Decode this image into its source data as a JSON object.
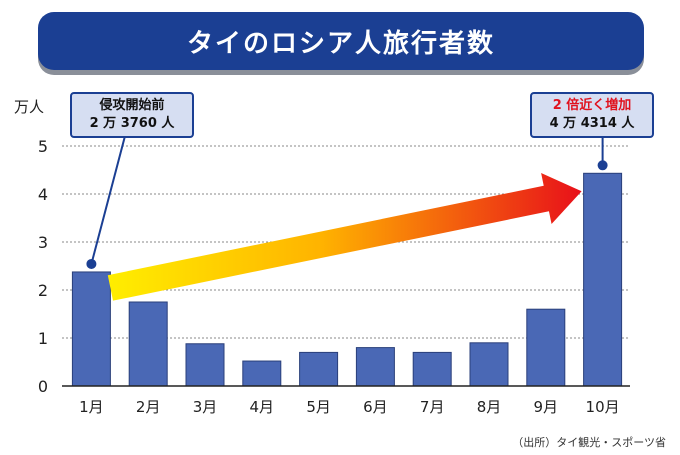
{
  "title": "タイのロシア人旅行者数",
  "source": "（出所）タイ観光・スポーツ省",
  "callouts": {
    "before": {
      "line1": "侵攻開始前",
      "line2": "2 万 3760 人"
    },
    "after": {
      "line1": "2 倍近く増加",
      "line2": "4 万 4314 人"
    }
  },
  "colors": {
    "bar": "#4a68b5",
    "banner": "#1b3f93",
    "arrow_start": "#ffee00",
    "arrow_end": "#e8101a"
  },
  "chart_data": {
    "type": "bar",
    "title": "タイのロシア人旅行者数",
    "ylabel": "万人",
    "xlabel": "",
    "categories": [
      "1月",
      "2月",
      "3月",
      "4月",
      "5月",
      "6月",
      "7月",
      "8月",
      "9月",
      "10月"
    ],
    "values": [
      2.376,
      1.75,
      0.88,
      0.52,
      0.7,
      0.8,
      0.7,
      0.9,
      1.6,
      4.4314
    ],
    "ylim": [
      0,
      5
    ],
    "yticks": [
      "0",
      "1",
      "2",
      "3",
      "4",
      "5"
    ],
    "grid": true
  }
}
